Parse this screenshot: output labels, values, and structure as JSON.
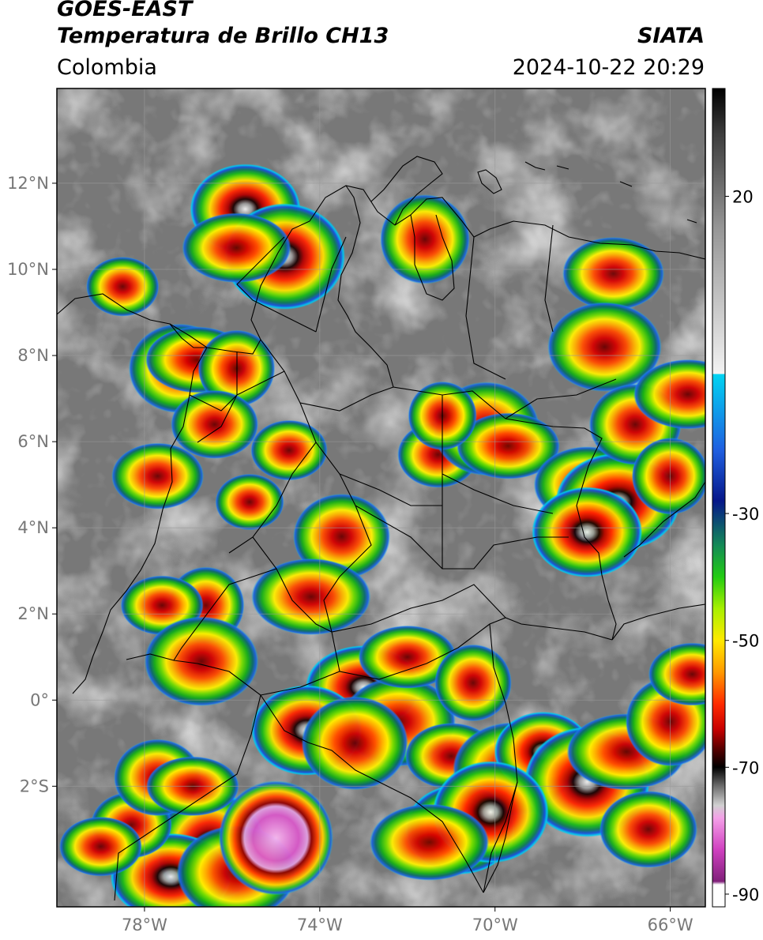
{
  "header": {
    "satellite": "GOES-EAST",
    "product": "Temperatura de Brillo CH13",
    "region": "Colombia",
    "agency": "SIATA",
    "timestamp": "2024-10-22 20:29"
  },
  "map": {
    "projection": "equirectangular",
    "lon_range": [
      -80,
      -65.2
    ],
    "lat_range": [
      -4.8,
      14.2
    ],
    "lat_ticks": [
      {
        "value": 12,
        "label": "12°N"
      },
      {
        "value": 10,
        "label": "10°N"
      },
      {
        "value": 8,
        "label": "8°N"
      },
      {
        "value": 6,
        "label": "6°N"
      },
      {
        "value": 4,
        "label": "4°N"
      },
      {
        "value": 2,
        "label": "2°N"
      },
      {
        "value": 0,
        "label": "0°"
      },
      {
        "value": -2,
        "label": "2°S"
      }
    ],
    "lon_ticks": [
      {
        "value": -78,
        "label": "78°W"
      },
      {
        "value": -74,
        "label": "74°W"
      },
      {
        "value": -70,
        "label": "70°W"
      },
      {
        "value": -66,
        "label": "66°W"
      }
    ],
    "grid": true,
    "storm_cells": [
      {
        "lon": -75.7,
        "lat": 11.4,
        "intensity": 0.95
      },
      {
        "lon": -74.8,
        "lat": 10.3,
        "intensity": 0.9
      },
      {
        "lon": -75.9,
        "lat": 10.5,
        "intensity": 0.65
      },
      {
        "lon": -71.6,
        "lat": 10.7,
        "intensity": 0.7
      },
      {
        "lon": -67.3,
        "lat": 9.9,
        "intensity": 0.7
      },
      {
        "lon": -67.5,
        "lat": 8.2,
        "intensity": 0.7
      },
      {
        "lon": -78.5,
        "lat": 9.6,
        "intensity": 0.5
      },
      {
        "lon": -77.2,
        "lat": 7.7,
        "intensity": 0.7
      },
      {
        "lon": -76.8,
        "lat": 7.9,
        "intensity": 0.6
      },
      {
        "lon": -75.9,
        "lat": 7.7,
        "intensity": 0.55
      },
      {
        "lon": -77.7,
        "lat": 5.2,
        "intensity": 0.6
      },
      {
        "lon": -76.4,
        "lat": 6.4,
        "intensity": 0.45
      },
      {
        "lon": -75.6,
        "lat": 4.6,
        "intensity": 0.45
      },
      {
        "lon": -73.5,
        "lat": 3.8,
        "intensity": 0.65
      },
      {
        "lon": -74.2,
        "lat": 2.4,
        "intensity": 0.75
      },
      {
        "lon": -76.6,
        "lat": 2.2,
        "intensity": 0.55
      },
      {
        "lon": -77.6,
        "lat": 2.2,
        "intensity": 0.5
      },
      {
        "lon": -76.7,
        "lat": 0.9,
        "intensity": 0.7
      },
      {
        "lon": -71.3,
        "lat": 5.7,
        "intensity": 0.6
      },
      {
        "lon": -70.2,
        "lat": 6.3,
        "intensity": 0.75
      },
      {
        "lon": -69.7,
        "lat": 5.9,
        "intensity": 0.6
      },
      {
        "lon": -71.2,
        "lat": 6.6,
        "intensity": 0.45
      },
      {
        "lon": -67.9,
        "lat": 5.0,
        "intensity": 0.75
      },
      {
        "lon": -67.2,
        "lat": 4.6,
        "intensity": 0.8
      },
      {
        "lon": -67.9,
        "lat": 3.9,
        "intensity": 0.95
      },
      {
        "lon": -66.8,
        "lat": 6.4,
        "intensity": 0.6
      },
      {
        "lon": -65.6,
        "lat": 7.1,
        "intensity": 0.65
      },
      {
        "lon": -66.0,
        "lat": 5.2,
        "intensity": 0.55
      },
      {
        "lon": -73.0,
        "lat": 0.3,
        "intensity": 0.85
      },
      {
        "lon": -72.2,
        "lat": -0.5,
        "intensity": 0.7
      },
      {
        "lon": -74.3,
        "lat": -0.7,
        "intensity": 0.95
      },
      {
        "lon": -73.2,
        "lat": -1.0,
        "intensity": 0.75
      },
      {
        "lon": -72.0,
        "lat": 1.0,
        "intensity": 0.55
      },
      {
        "lon": -70.5,
        "lat": 0.4,
        "intensity": 0.55
      },
      {
        "lon": -71.0,
        "lat": -1.3,
        "intensity": 0.6
      },
      {
        "lon": -69.6,
        "lat": -1.6,
        "intensity": 0.75
      },
      {
        "lon": -68.9,
        "lat": -1.2,
        "intensity": 0.8
      },
      {
        "lon": -67.9,
        "lat": -1.9,
        "intensity": 0.95
      },
      {
        "lon": -67.0,
        "lat": -1.2,
        "intensity": 0.75
      },
      {
        "lon": -66.0,
        "lat": -0.5,
        "intensity": 0.7
      },
      {
        "lon": -65.5,
        "lat": 0.6,
        "intensity": 0.55
      },
      {
        "lon": -66.5,
        "lat": -3.0,
        "intensity": 0.55
      },
      {
        "lon": -70.8,
        "lat": -3.0,
        "intensity": 0.95
      },
      {
        "lon": -70.1,
        "lat": -2.6,
        "intensity": 0.85
      },
      {
        "lon": -71.5,
        "lat": -3.3,
        "intensity": 0.75
      },
      {
        "lon": -76.5,
        "lat": -3.4,
        "intensity": 0.95
      },
      {
        "lon": -77.4,
        "lat": -4.1,
        "intensity": 0.9
      },
      {
        "lon": -75.9,
        "lat": -4.0,
        "intensity": 0.75
      },
      {
        "lon": -78.3,
        "lat": -2.9,
        "intensity": 0.6
      },
      {
        "lon": -77.7,
        "lat": -1.8,
        "intensity": 0.55
      },
      {
        "lon": -76.9,
        "lat": -2.0,
        "intensity": 0.5
      },
      {
        "lon": -75.0,
        "lat": -3.2,
        "intensity": 1.0
      },
      {
        "lon": -79.0,
        "lat": -3.4,
        "intensity": 0.5
      },
      {
        "lon": -74.7,
        "lat": 5.8,
        "intensity": 0.35
      }
    ]
  },
  "colorbar": {
    "ticks": [
      {
        "value": 20,
        "label": "20"
      },
      {
        "value": -30,
        "label": "-30"
      },
      {
        "value": -50,
        "label": "-50"
      },
      {
        "value": -70,
        "label": "-70"
      },
      {
        "value": -90,
        "label": "-90"
      }
    ],
    "range": [
      -92,
      37
    ],
    "stops": [
      {
        "value": 37,
        "color": "#000000"
      },
      {
        "value": 30,
        "color": "#3c3c3c"
      },
      {
        "value": 15,
        "color": "#969696"
      },
      {
        "value": 0,
        "color": "#d2d2d2"
      },
      {
        "value": -8,
        "color": "#f3f3f3"
      },
      {
        "value": -8,
        "color": "#00d4f2"
      },
      {
        "value": -20,
        "color": "#1f5fe0"
      },
      {
        "value": -28,
        "color": "#06178a"
      },
      {
        "value": -35,
        "color": "#138a57"
      },
      {
        "value": -40,
        "color": "#22cc12"
      },
      {
        "value": -45,
        "color": "#a8f000"
      },
      {
        "value": -50,
        "color": "#ffea00"
      },
      {
        "value": -55,
        "color": "#ff9900"
      },
      {
        "value": -60,
        "color": "#ff2a00"
      },
      {
        "value": -64,
        "color": "#c80000"
      },
      {
        "value": -67,
        "color": "#5a0000"
      },
      {
        "value": -70,
        "color": "#000000"
      },
      {
        "value": -73,
        "color": "#6e6e6e"
      },
      {
        "value": -76,
        "color": "#d0d0d0"
      },
      {
        "value": -78,
        "color": "#f4a0e8"
      },
      {
        "value": -83,
        "color": "#d040c0"
      },
      {
        "value": -88,
        "color": "#80207a"
      },
      {
        "value": -88.5,
        "color": "#ffffff"
      },
      {
        "value": -92,
        "color": "#ffffff"
      }
    ]
  }
}
